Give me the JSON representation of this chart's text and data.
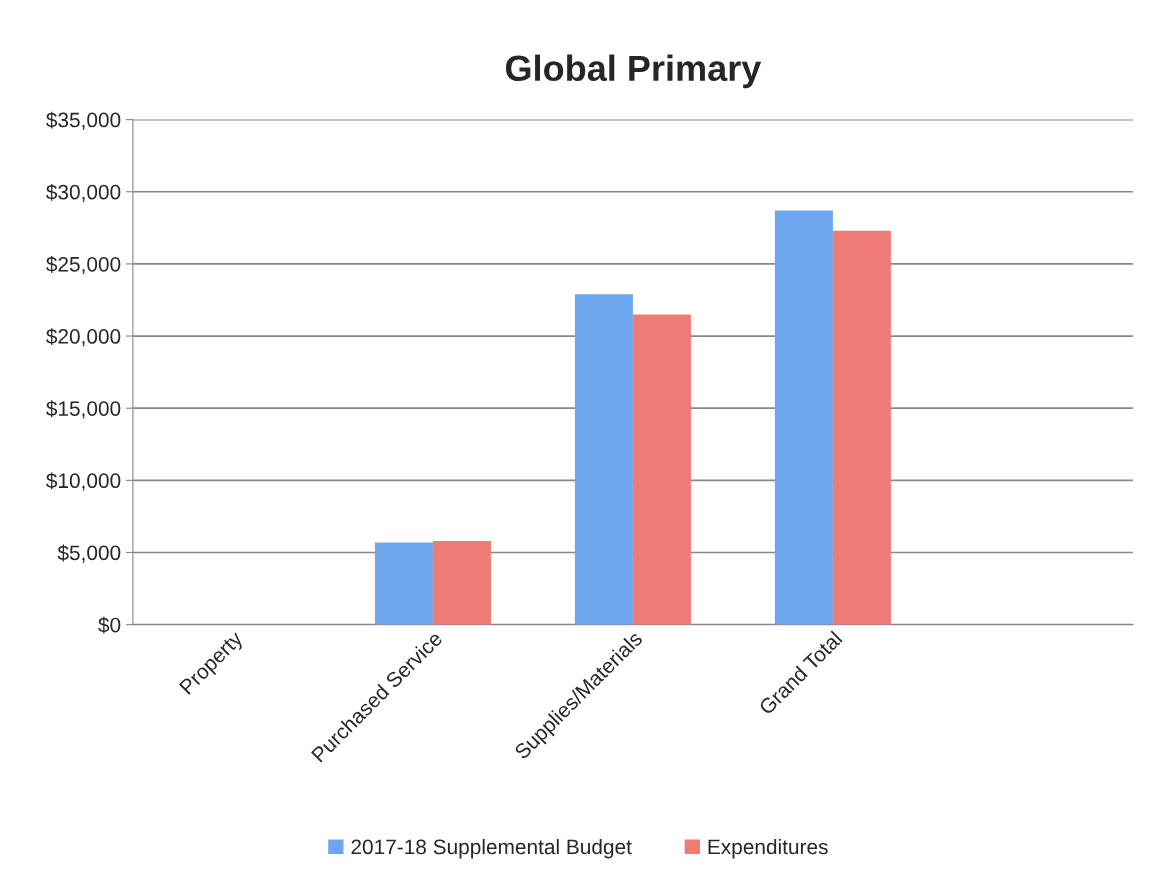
{
  "chart_data": {
    "type": "bar",
    "title": "Global Primary",
    "categories": [
      "Property",
      "Purchased Service",
      "Supplies/Materials",
      "Grand Total",
      null
    ],
    "series": [
      {
        "name": "2017-18 Supplemental Budget",
        "color": "#6ea6ee",
        "values": [
          null,
          5700,
          22900,
          28700,
          null
        ]
      },
      {
        "name": "Expenditures",
        "color": "#ee7c75",
        "values": [
          null,
          5800,
          21500,
          27300,
          null
        ]
      }
    ],
    "ylim": [
      0,
      35000
    ],
    "yticks": [
      {
        "value": 0,
        "label": "$0"
      },
      {
        "value": 5000,
        "label": "$5,000"
      },
      {
        "value": 10000,
        "label": "$10,000"
      },
      {
        "value": 15000,
        "label": "$15,000"
      },
      {
        "value": 20000,
        "label": "$20,000"
      },
      {
        "value": 25000,
        "label": "$25,000"
      },
      {
        "value": 30000,
        "label": "$30,000"
      },
      {
        "value": 35000,
        "label": "$35,000"
      }
    ],
    "grid": "y",
    "legend": "bottom"
  }
}
